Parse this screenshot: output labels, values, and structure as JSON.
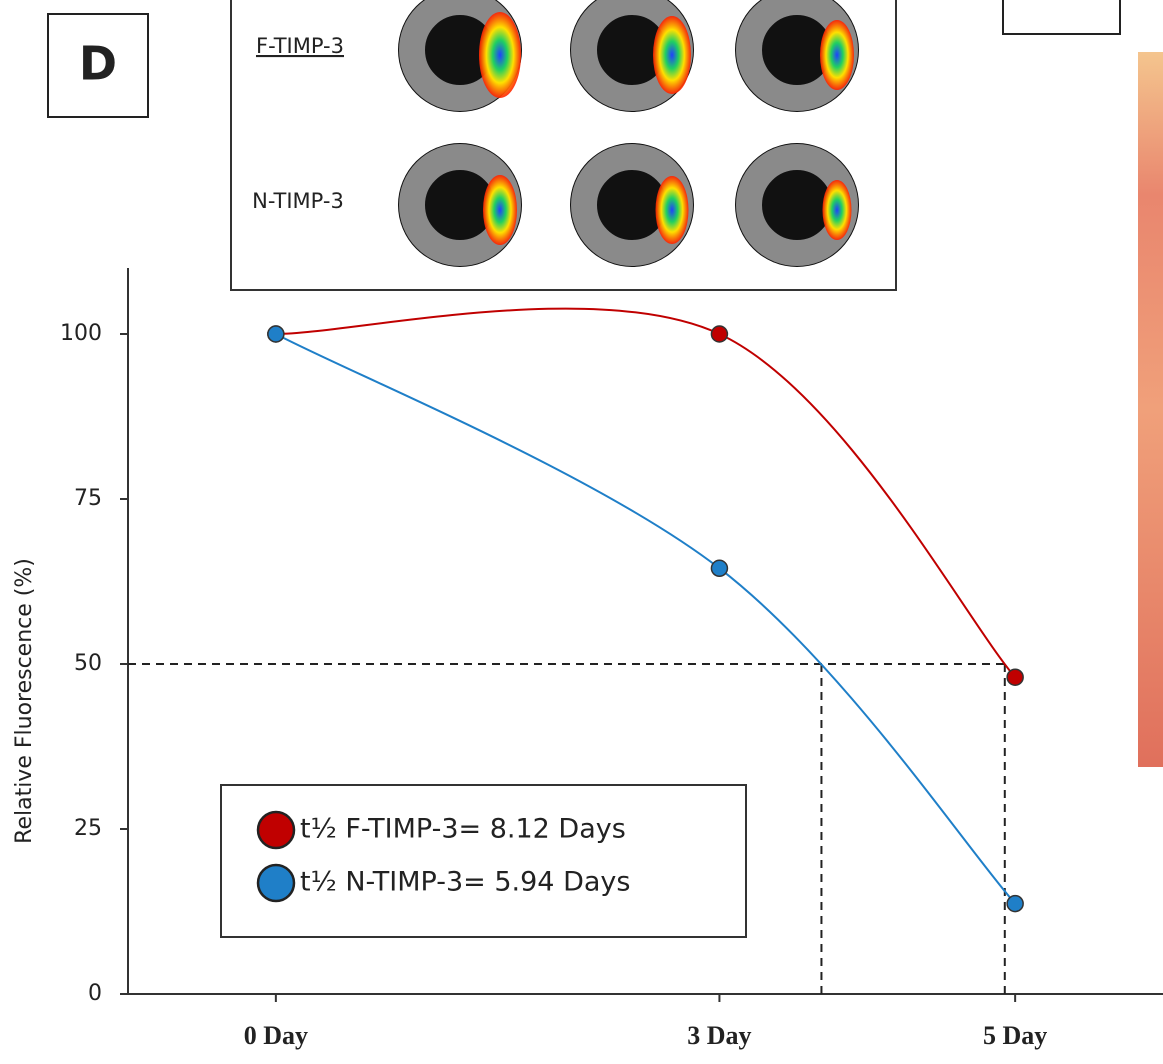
{
  "panel_label": "D",
  "inset": {
    "labels": [
      "F-TIMP-3",
      "N-TIMP-3"
    ]
  },
  "chart_data": {
    "type": "line",
    "y_label": "Relative Fluorescence (%)",
    "x": [
      0,
      3,
      5
    ],
    "xlim": [
      -1,
      6
    ],
    "xticks": [
      {
        "value": 0,
        "label": "0 Day"
      },
      {
        "value": 3,
        "label": "3 Day"
      },
      {
        "value": 5,
        "label": "5 Day"
      }
    ],
    "ylim": [
      0,
      110
    ],
    "yticks": [
      0,
      25,
      50,
      75,
      100
    ],
    "series": [
      {
        "name": "t½ F-TIMP-3= 8.12 Days",
        "color": "#c00000",
        "values": [
          100,
          100,
          48
        ]
      },
      {
        "name": "t½ N-TIMP-3= 5.94 Days",
        "color": "#1f7fc8",
        "values": [
          100,
          64.5,
          13.7
        ]
      }
    ],
    "reference_lines": {
      "y": 50,
      "x": [
        3.69,
        4.93
      ]
    },
    "smooth": true
  }
}
